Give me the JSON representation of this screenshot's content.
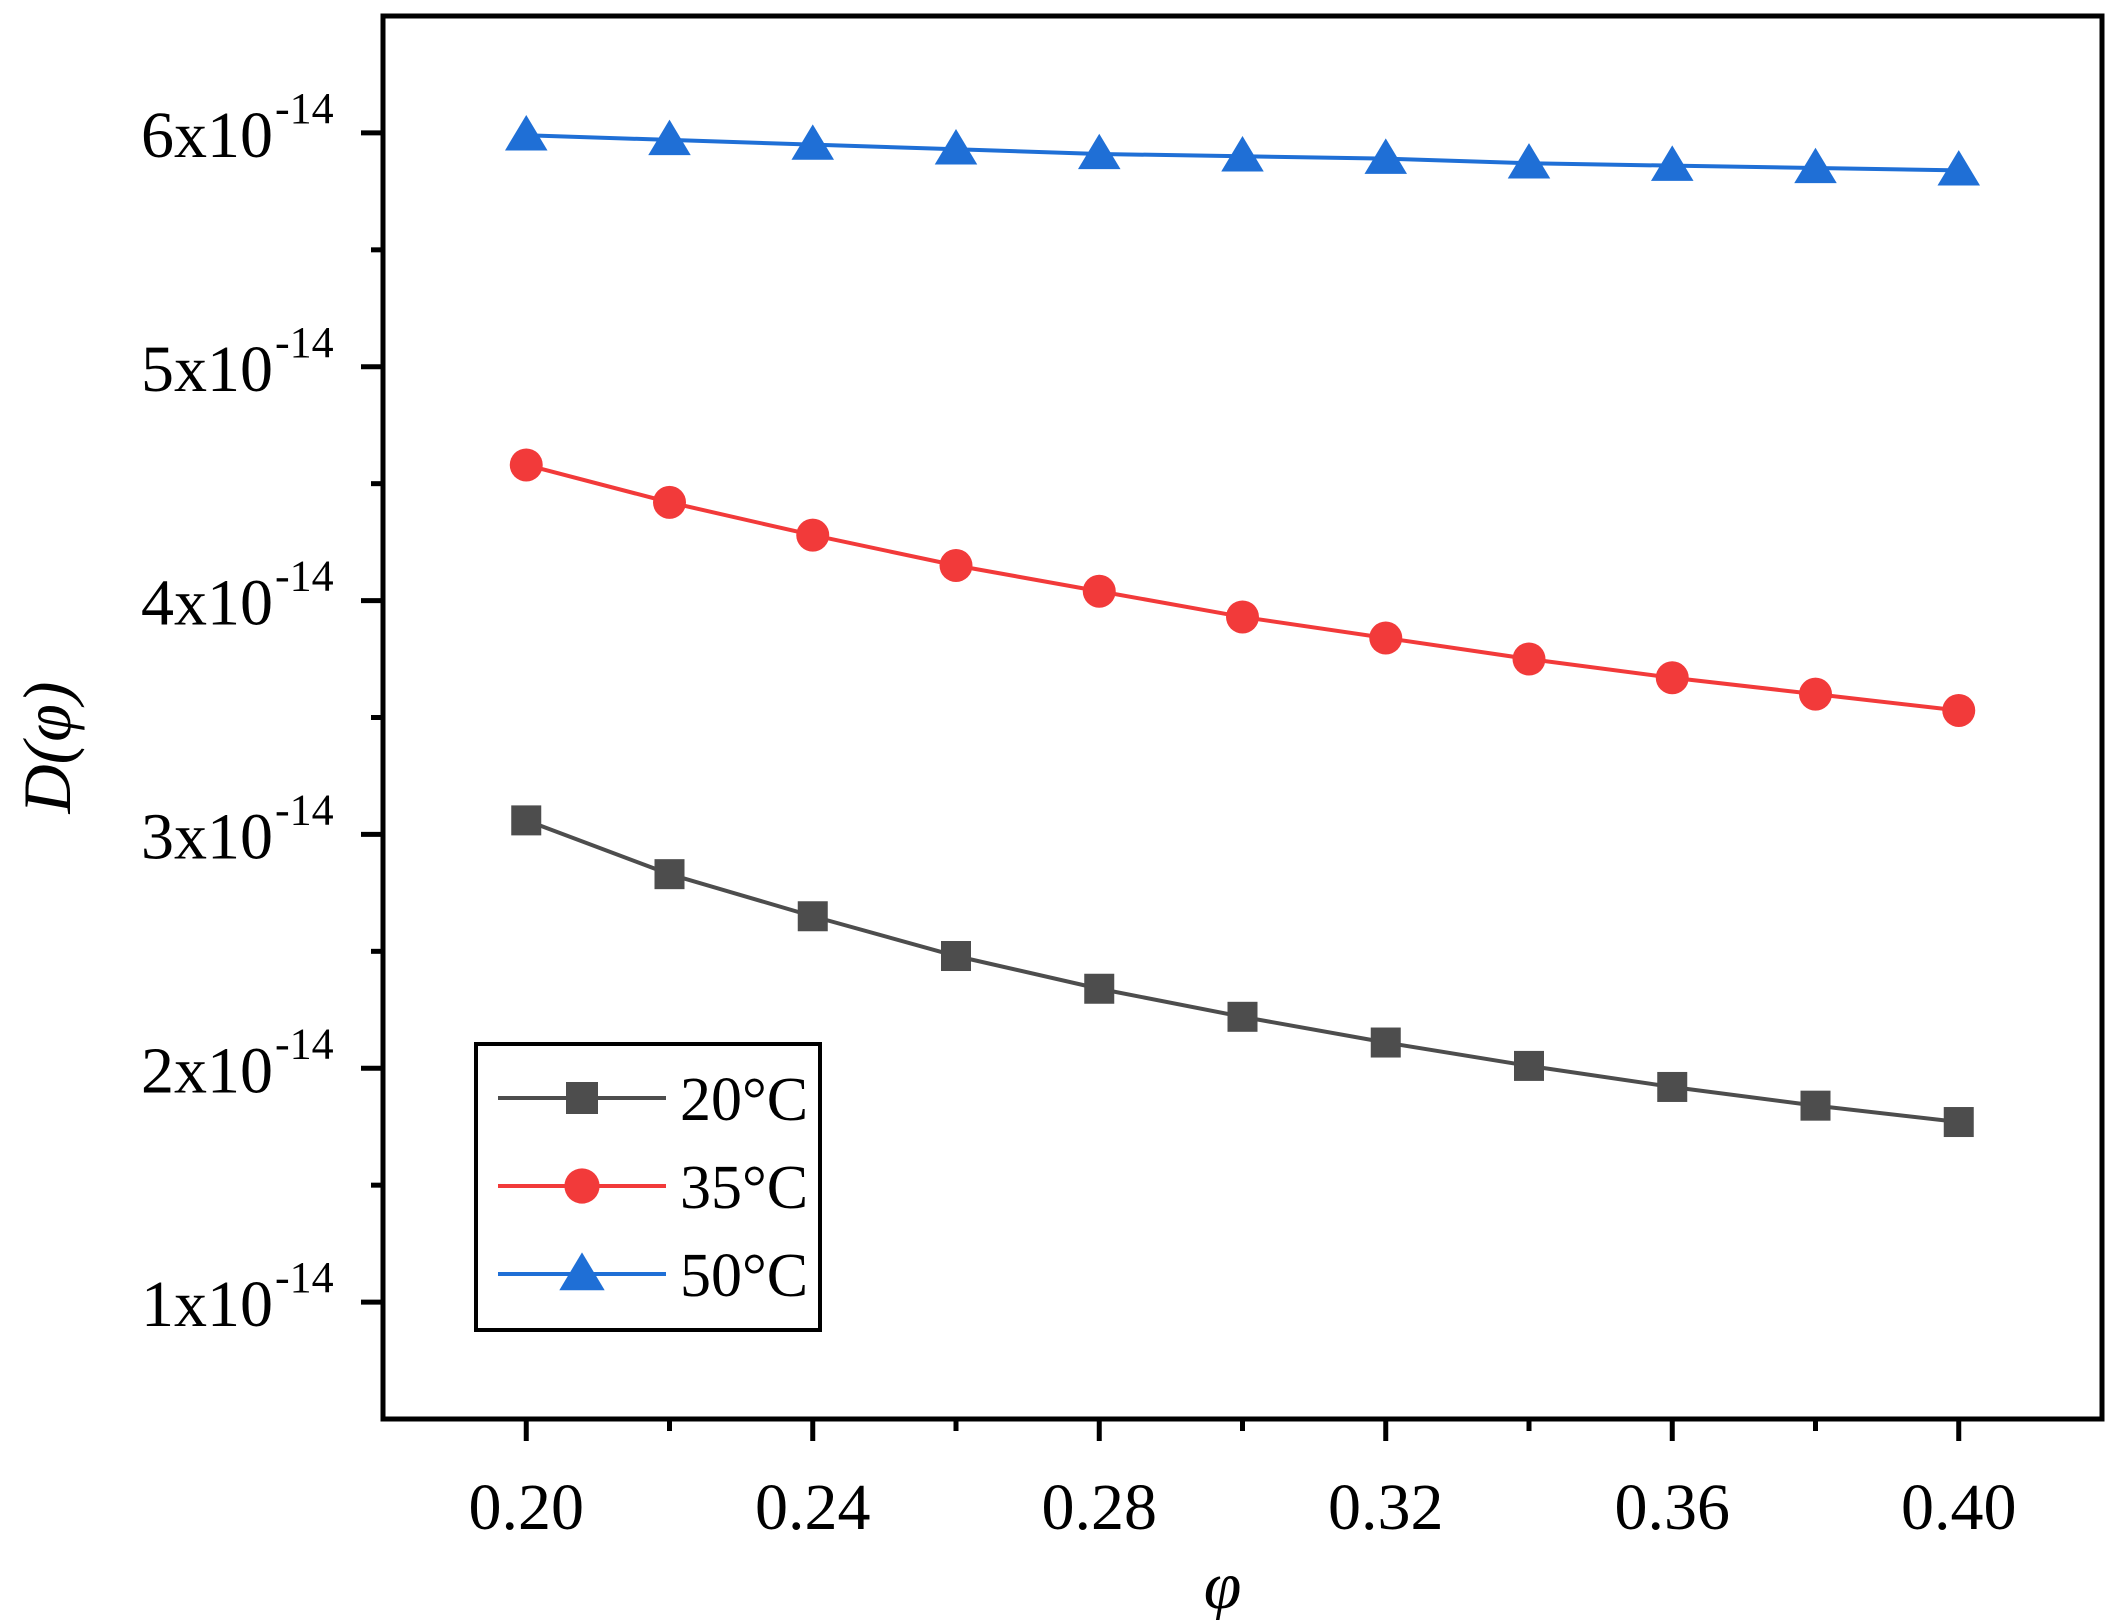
{
  "chart_data": {
    "type": "line",
    "title": "",
    "xlabel": "φ",
    "ylabel": "D(φ)",
    "xlim": [
      0.18,
      0.42
    ],
    "ylim": [
      5e-15,
      6.5e-14
    ],
    "grid": false,
    "legend_position": "bottom-left",
    "x": [
      0.2,
      0.22,
      0.24,
      0.26,
      0.28,
      0.3,
      0.32,
      0.34,
      0.36,
      0.38,
      0.4
    ],
    "x_ticks": [
      {
        "value": 0.2,
        "label": "0.20"
      },
      {
        "value": 0.24,
        "label": "0.24"
      },
      {
        "value": 0.28,
        "label": "0.28"
      },
      {
        "value": 0.32,
        "label": "0.32"
      },
      {
        "value": 0.36,
        "label": "0.36"
      },
      {
        "value": 0.4,
        "label": "0.40"
      }
    ],
    "y_ticks": [
      {
        "value": 1e-14,
        "mantissa": "1x10",
        "exponent": "-14"
      },
      {
        "value": 2e-14,
        "mantissa": "2x10",
        "exponent": "-14"
      },
      {
        "value": 3e-14,
        "mantissa": "3x10",
        "exponent": "-14"
      },
      {
        "value": 4e-14,
        "mantissa": "4x10",
        "exponent": "-14"
      },
      {
        "value": 5e-14,
        "mantissa": "5x10",
        "exponent": "-14"
      },
      {
        "value": 6e-14,
        "mantissa": "6x10",
        "exponent": "-14"
      }
    ],
    "series": [
      {
        "name": "20°C",
        "color": "#4d4d4d",
        "marker": "square",
        "values": [
          3.06e-14,
          2.83e-14,
          2.65e-14,
          2.48e-14,
          2.34e-14,
          2.22e-14,
          2.11e-14,
          2.01e-14,
          1.92e-14,
          1.84e-14,
          1.77e-14
        ]
      },
      {
        "name": "35°C",
        "color": "#f23a3a",
        "marker": "circle",
        "values": [
          4.58e-14,
          4.42e-14,
          4.28e-14,
          4.15e-14,
          4.04e-14,
          3.93e-14,
          3.84e-14,
          3.75e-14,
          3.67e-14,
          3.6e-14,
          3.53e-14
        ]
      },
      {
        "name": "50°C",
        "color": "#1f6fd6",
        "marker": "triangle",
        "values": [
          5.99e-14,
          5.97e-14,
          5.95e-14,
          5.93e-14,
          5.91e-14,
          5.9e-14,
          5.89e-14,
          5.87e-14,
          5.86e-14,
          5.85e-14,
          5.84e-14
        ]
      }
    ]
  }
}
